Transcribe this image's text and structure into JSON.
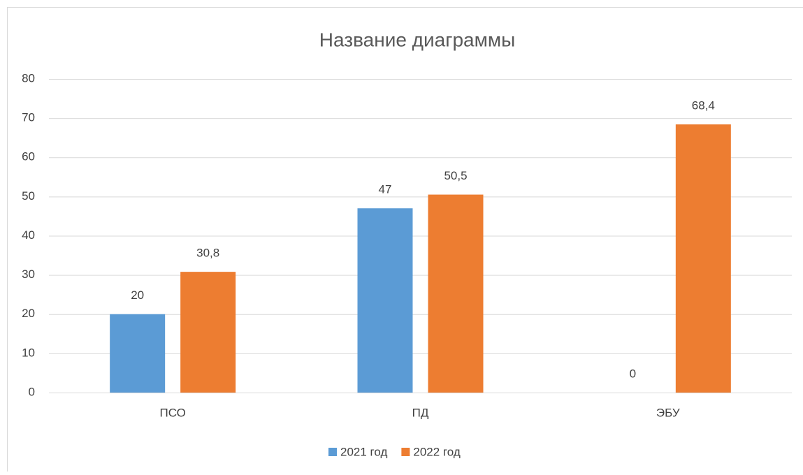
{
  "chart_data": {
    "type": "bar",
    "title": "Название диаграммы",
    "categories": [
      "ПСО",
      "ПД",
      "ЭБУ"
    ],
    "series": [
      {
        "name": "2021 год",
        "color": "#5b9bd5",
        "values": [
          20,
          47,
          0
        ],
        "value_labels": [
          "20",
          "47",
          "0"
        ]
      },
      {
        "name": "2022 год",
        "color": "#ed7d31",
        "values": [
          30.8,
          50.5,
          68.4
        ],
        "value_labels": [
          "30,8",
          "50,5",
          "68,4"
        ]
      }
    ],
    "ylim": [
      0,
      80
    ],
    "yticks": [
      0,
      10,
      20,
      30,
      40,
      50,
      60,
      70,
      80
    ],
    "grid": true,
    "legend": "bottom"
  }
}
